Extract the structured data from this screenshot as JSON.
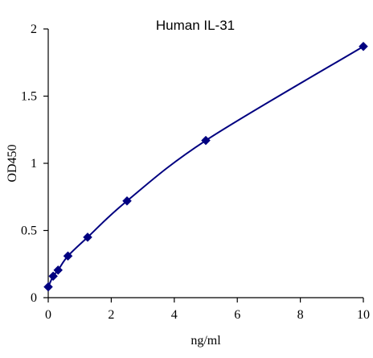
{
  "chart_data": {
    "type": "scatter",
    "title": "Human IL-31",
    "xlabel": "ng/ml",
    "ylabel": "OD450",
    "xlim": [
      0,
      10
    ],
    "ylim": [
      0,
      2
    ],
    "x_ticks": [
      0,
      2,
      4,
      6,
      8,
      10
    ],
    "y_ticks": [
      0,
      0.5,
      1,
      1.5,
      2
    ],
    "x_tick_labels": [
      "0",
      "2",
      "4",
      "6",
      "8",
      "10"
    ],
    "y_tick_labels": [
      "0",
      "0.5",
      "1",
      "1.5",
      "2"
    ],
    "grid": false,
    "series": [
      {
        "marker": "diamond",
        "line": "smooth",
        "color": "#000080",
        "points": [
          {
            "x": 0,
            "y": 0.08
          },
          {
            "x": 0.156,
            "y": 0.16
          },
          {
            "x": 0.3125,
            "y": 0.205
          },
          {
            "x": 0.625,
            "y": 0.31
          },
          {
            "x": 1.25,
            "y": 0.45
          },
          {
            "x": 2.5,
            "y": 0.72
          },
          {
            "x": 5,
            "y": 1.17
          },
          {
            "x": 10,
            "y": 1.87
          }
        ]
      }
    ]
  }
}
